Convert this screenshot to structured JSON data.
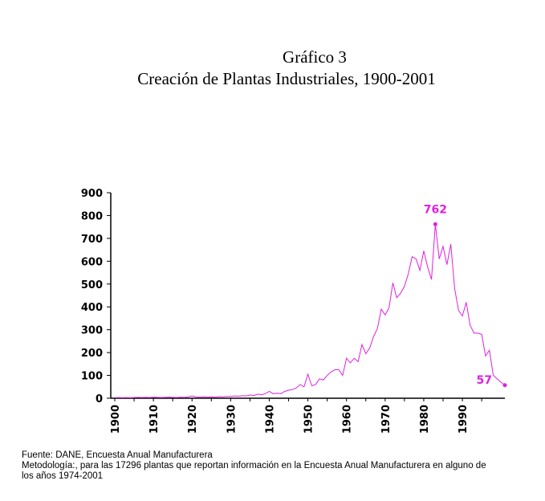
{
  "chart_data": {
    "type": "line",
    "title": "Gráfico 3",
    "subtitle": "Creación de Plantas Industriales, 1900-2001",
    "x": [
      1900,
      1901,
      1902,
      1903,
      1904,
      1905,
      1906,
      1907,
      1908,
      1909,
      1910,
      1911,
      1912,
      1913,
      1914,
      1915,
      1916,
      1917,
      1918,
      1919,
      1920,
      1921,
      1922,
      1923,
      1924,
      1925,
      1926,
      1927,
      1928,
      1929,
      1930,
      1931,
      1932,
      1933,
      1934,
      1935,
      1936,
      1937,
      1938,
      1939,
      1940,
      1941,
      1942,
      1943,
      1944,
      1945,
      1946,
      1947,
      1948,
      1949,
      1950,
      1951,
      1952,
      1953,
      1954,
      1955,
      1956,
      1957,
      1958,
      1959,
      1960,
      1961,
      1962,
      1963,
      1964,
      1965,
      1966,
      1967,
      1968,
      1969,
      1970,
      1971,
      1972,
      1973,
      1974,
      1975,
      1976,
      1977,
      1978,
      1979,
      1980,
      1981,
      1982,
      1983,
      1984,
      1985,
      1986,
      1987,
      1988,
      1989,
      1990,
      1991,
      1992,
      1993,
      1994,
      1995,
      1996,
      1997,
      1998,
      1999,
      2000,
      2001
    ],
    "values": [
      2,
      3,
      2,
      3,
      2,
      3,
      4,
      3,
      4,
      3,
      5,
      4,
      3,
      4,
      5,
      4,
      3,
      5,
      4,
      6,
      10,
      6,
      5,
      6,
      5,
      6,
      5,
      7,
      6,
      8,
      8,
      10,
      9,
      11,
      10,
      14,
      12,
      18,
      15,
      20,
      30,
      20,
      22,
      20,
      30,
      35,
      38,
      45,
      60,
      50,
      105,
      55,
      60,
      85,
      80,
      100,
      115,
      125,
      125,
      100,
      175,
      155,
      175,
      160,
      235,
      195,
      220,
      270,
      305,
      390,
      365,
      395,
      505,
      440,
      460,
      490,
      545,
      620,
      610,
      560,
      645,
      575,
      520,
      762,
      610,
      665,
      585,
      675,
      480,
      385,
      360,
      420,
      320,
      285,
      285,
      280,
      185,
      210,
      100,
      85,
      70,
      57
    ],
    "color": "#e020e0",
    "xlim": [
      1900,
      2001
    ],
    "xticks": [
      1900,
      1905,
      1910,
      1915,
      1920,
      1925,
      1930,
      1935,
      1940,
      1945,
      1950,
      1955,
      1960,
      1965,
      1970,
      1975,
      1980,
      1985,
      1990,
      1995
    ],
    "xticklabels_every": 2,
    "ylim": [
      0,
      900
    ],
    "yticks": [
      0,
      100,
      200,
      300,
      400,
      500,
      600,
      700,
      800,
      900
    ],
    "annotations": [
      {
        "x": 1983,
        "y": 762
      },
      {
        "x": 2001,
        "y": 57
      }
    ],
    "footnotes": [
      "Fuente: DANE, Encuesta Anual Manufacturera",
      "Metodología:, para las 17296 plantas que reportan información en la Encuesta Anual Manufacturera en alguno de",
      "los años 1974-2001"
    ]
  }
}
